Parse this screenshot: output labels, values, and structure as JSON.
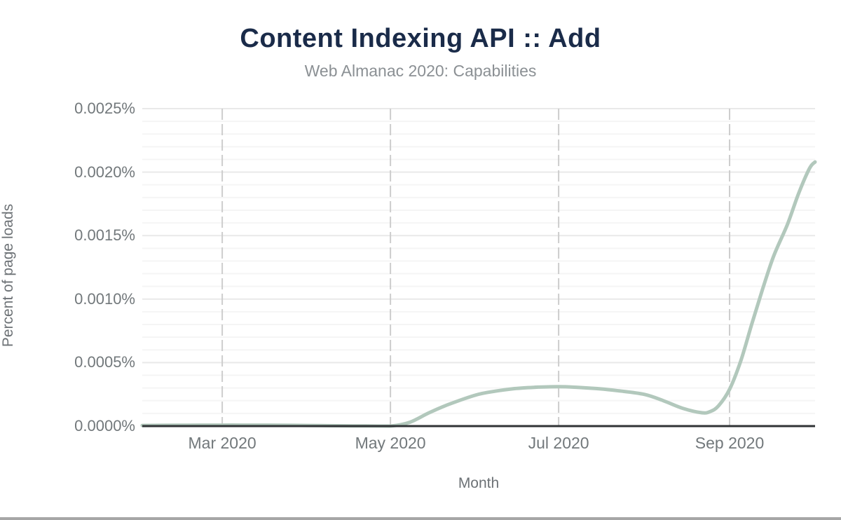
{
  "style": {
    "background": "#ffffff",
    "title_color": "#1a2b49",
    "subtitle_color": "#8b9094",
    "tick_label_color": "#72787b",
    "axis_title_color": "#6d7276",
    "series_color": "#b2c8bc",
    "axis_line_color": "#303336",
    "vertical_gridline_color": "#cdcdcd",
    "major_gridline_color": "#e9e9e9",
    "minor_gridline_color": "#f5f5f5",
    "bottom_bar_color": "#a6a6a6"
  },
  "chart_data": {
    "type": "line",
    "title": "Content Indexing API :: Add",
    "subtitle": "Web Almanac 2020: Capabilities",
    "xlabel": "Month",
    "ylabel": "Percent of page loads",
    "legend": "none",
    "grid": "on",
    "ylim": [
      0,
      0.0025
    ],
    "y_minor_step": 0.0001,
    "x_domain": [
      "2020-02-01",
      "2020-10-02"
    ],
    "yticks": [
      {
        "label": "0.0000%",
        "value": 0.0
      },
      {
        "label": "0.0005%",
        "value": 0.0005
      },
      {
        "label": "0.0010%",
        "value": 0.001
      },
      {
        "label": "0.0015%",
        "value": 0.0015
      },
      {
        "label": "0.0020%",
        "value": 0.002
      },
      {
        "label": "0.0025%",
        "value": 0.0025
      }
    ],
    "xticks": [
      {
        "label": "Mar 2020",
        "date": "2020-03-01"
      },
      {
        "label": "May 2020",
        "date": "2020-05-01"
      },
      {
        "label": "Jul 2020",
        "date": "2020-07-01"
      },
      {
        "label": "Sep 2020",
        "date": "2020-09-01"
      }
    ],
    "series": [
      {
        "name": "Content Indexing API :: Add",
        "unit": "percent of page loads",
        "x_dates": [
          "2020-02-01",
          "2020-02-08",
          "2020-02-15",
          "2020-02-22",
          "2020-03-01",
          "2020-03-08",
          "2020-03-15",
          "2020-03-22",
          "2020-04-01",
          "2020-04-08",
          "2020-04-15",
          "2020-04-22",
          "2020-05-01",
          "2020-05-08",
          "2020-05-15",
          "2020-05-22",
          "2020-06-01",
          "2020-06-08",
          "2020-06-15",
          "2020-06-22",
          "2020-07-01",
          "2020-07-08",
          "2020-07-15",
          "2020-07-22",
          "2020-08-01",
          "2020-08-08",
          "2020-08-15",
          "2020-08-22",
          "2020-08-25",
          "2020-08-28",
          "2020-09-01",
          "2020-09-05",
          "2020-09-09",
          "2020-09-13",
          "2020-09-17",
          "2020-09-22",
          "2020-09-26",
          "2020-09-30",
          "2020-10-02"
        ],
        "values_percent": [
          5e-06,
          6e-06,
          7e-06,
          7.5e-06,
          8e-06,
          8e-06,
          7.8e-06,
          7e-06,
          5e-06,
          3.5e-06,
          2e-06,
          1e-06,
          0.0,
          3e-05,
          0.000105,
          0.00017,
          0.000245,
          0.000275,
          0.000295,
          0.000305,
          0.00031,
          0.000305,
          0.000295,
          0.00028,
          0.00025,
          0.0002,
          0.00014,
          0.000105,
          0.000115,
          0.00016,
          0.00029,
          0.00051,
          0.0008,
          0.00108,
          0.00134,
          0.00159,
          0.00183,
          0.00203,
          0.00208
        ]
      }
    ]
  }
}
